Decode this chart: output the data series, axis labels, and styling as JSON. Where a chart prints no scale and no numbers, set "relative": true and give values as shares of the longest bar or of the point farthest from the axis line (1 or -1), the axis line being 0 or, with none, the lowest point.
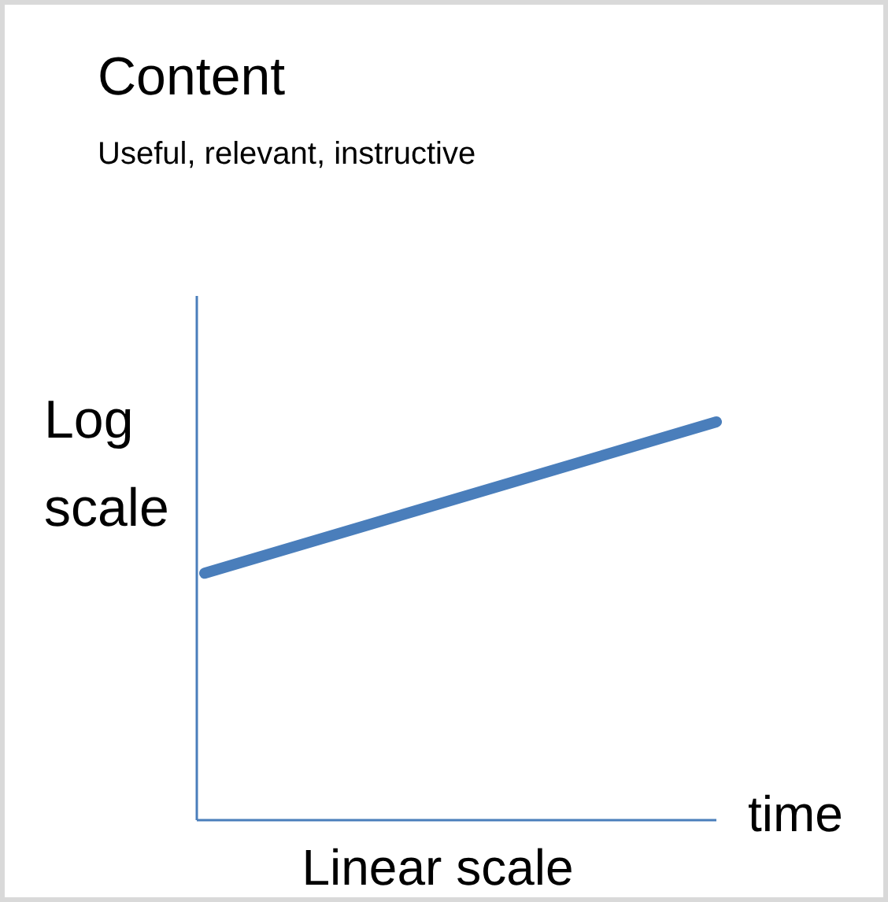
{
  "chart_data": {
    "type": "line",
    "title": "Content",
    "subtitle": "Useful, relevant, instructive",
    "ylabel": "Log scale",
    "xlabel": "Linear scale",
    "annotations": [
      "time"
    ],
    "relative": true,
    "categories": [
      null,
      null
    ],
    "series": [
      {
        "color": "#4a7ebb",
        "values": [
          0.62,
          1
        ]
      }
    ]
  }
}
